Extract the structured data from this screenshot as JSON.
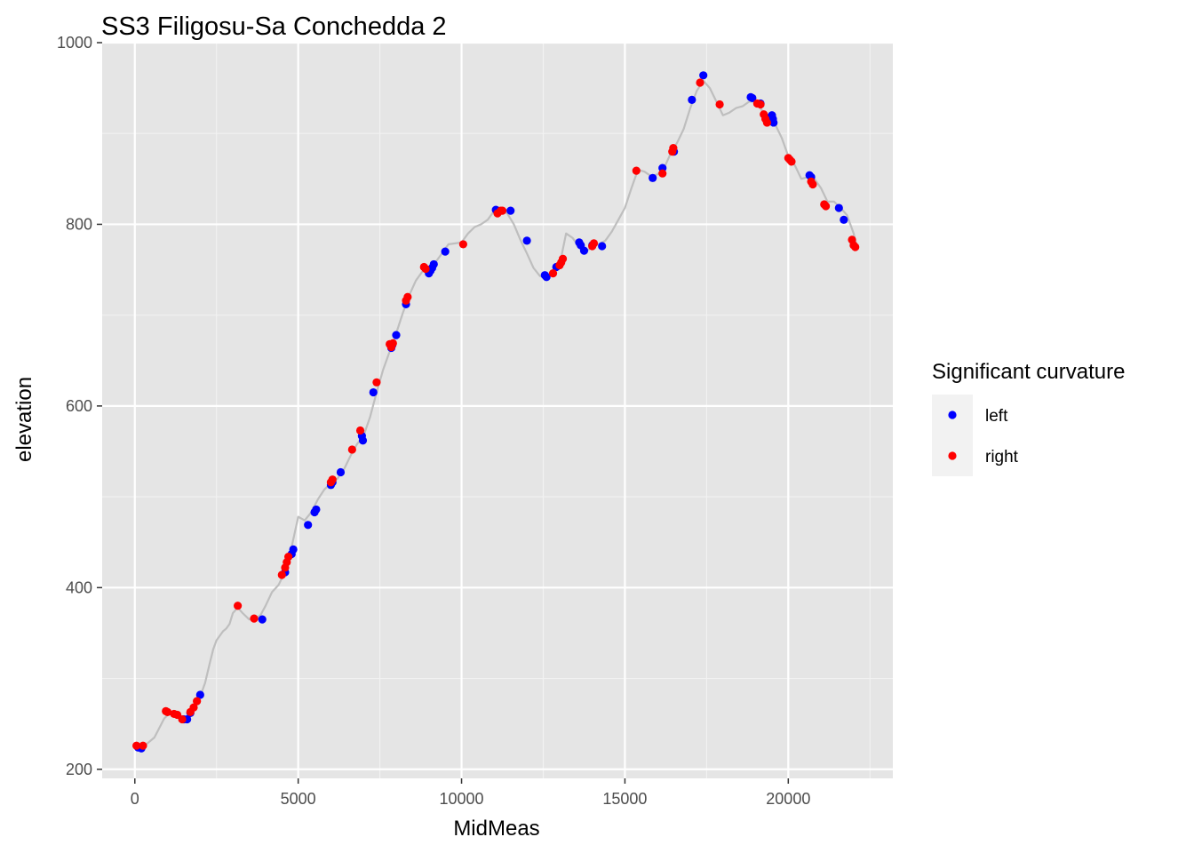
{
  "chart_data": {
    "type": "scatter",
    "title": "SS3 Filigosu-Sa Conchedda 2",
    "xlabel": "MidMeas",
    "ylabel": "elevation",
    "xlim": [
      -1000,
      23200
    ],
    "ylim": [
      190,
      1000
    ],
    "x_ticks": [
      0,
      5000,
      10000,
      15000,
      20000
    ],
    "x_minor_ticks": [
      2500,
      7500,
      12500,
      17500,
      22500
    ],
    "y_ticks": [
      200,
      400,
      600,
      800,
      1000
    ],
    "y_minor_ticks": [
      300,
      500,
      700,
      900
    ],
    "grid": true,
    "legend": {
      "title": "Significant curvature",
      "position": "right"
    },
    "line": {
      "color": "#bebebe",
      "x": [
        0,
        300,
        600,
        900,
        1100,
        1300,
        1500,
        1700,
        1850,
        2000,
        2150,
        2300,
        2400,
        2500,
        2600,
        2700,
        2800,
        2900,
        3000,
        3150,
        3300,
        3500,
        3700,
        3850,
        4000,
        4200,
        4400,
        4600,
        4800,
        5000,
        5200,
        5400,
        5600,
        5800,
        6000,
        6200,
        6400,
        6600,
        6800,
        7000,
        7200,
        7400,
        7600,
        7800,
        8000,
        8200,
        8400,
        8600,
        8800,
        9000,
        9200,
        9400,
        9600,
        9800,
        10000,
        10200,
        10400,
        10600,
        10800,
        11000,
        11200,
        11400,
        11600,
        11800,
        12000,
        12200,
        12400,
        12600,
        12800,
        13000,
        13200,
        13400,
        13600,
        13800,
        14000,
        14200,
        14400,
        14600,
        14800,
        15000,
        15200,
        15400,
        15600,
        15800,
        16000,
        16200,
        16400,
        16600,
        16800,
        17000,
        17200,
        17400,
        17600,
        17800,
        18000,
        18200,
        18400,
        18600,
        18800,
        19000,
        19200,
        19400,
        19600,
        19800,
        20000,
        20200,
        20400,
        20600,
        20800,
        21000,
        21200,
        21400,
        21600,
        21800,
        22000,
        22100
      ],
      "y": [
        225,
        226,
        235,
        256,
        263,
        261,
        255,
        258,
        268,
        280,
        295,
        318,
        332,
        342,
        347,
        352,
        355,
        360,
        372,
        378,
        372,
        365,
        366,
        370,
        380,
        395,
        403,
        418,
        445,
        478,
        474,
        483,
        497,
        508,
        515,
        520,
        530,
        545,
        558,
        567,
        588,
        615,
        640,
        660,
        680,
        702,
        722,
        738,
        748,
        752,
        758,
        768,
        778,
        779,
        780,
        790,
        797,
        800,
        805,
        815,
        815,
        812,
        800,
        783,
        768,
        752,
        743,
        742,
        746,
        755,
        790,
        785,
        775,
        770,
        775,
        778,
        782,
        792,
        805,
        818,
        840,
        860,
        858,
        853,
        855,
        862,
        878,
        890,
        905,
        928,
        947,
        958,
        950,
        935,
        920,
        923,
        928,
        930,
        935,
        935,
        925,
        918,
        910,
        895,
        875,
        865,
        850,
        852,
        850,
        840,
        825,
        825,
        818,
        810,
        790,
        775
      ]
    },
    "series": [
      {
        "name": "left",
        "color": "#0000ff",
        "x": [
          100,
          200,
          1500,
          1600,
          1700,
          2000,
          3900,
          4600,
          4800,
          4850,
          5300,
          5500,
          5550,
          6000,
          6050,
          6300,
          6950,
          6980,
          7300,
          7850,
          7880,
          8000,
          8300,
          9000,
          9050,
          9100,
          9150,
          9500,
          11050,
          11100,
          11500,
          12000,
          12550,
          12600,
          12900,
          13600,
          13650,
          13750,
          14000,
          14300,
          15850,
          16150,
          16500,
          17050,
          17400,
          18850,
          18900,
          19150,
          19350,
          19500,
          19530,
          19550,
          20650,
          20700,
          21550,
          21700
        ],
        "y": [
          224,
          223,
          255,
          255,
          262,
          282,
          365,
          417,
          437,
          442,
          469,
          483,
          486,
          513,
          516,
          527,
          567,
          562,
          615,
          664,
          667,
          678,
          712,
          746,
          749,
          752,
          756,
          770,
          816,
          815,
          815,
          782,
          744,
          742,
          753,
          780,
          777,
          771,
          777,
          776,
          851,
          862,
          880,
          937,
          964,
          940,
          939,
          933,
          917,
          920,
          916,
          912,
          854,
          852,
          818,
          805
        ]
      },
      {
        "name": "right",
        "color": "#ff0000",
        "x": [
          50,
          250,
          950,
          1000,
          1200,
          1300,
          1450,
          1700,
          1800,
          1900,
          3150,
          3650,
          4500,
          4600,
          4650,
          4700,
          6000,
          6050,
          6650,
          6900,
          7400,
          7800,
          7850,
          7900,
          8300,
          8350,
          8850,
          8900,
          10050,
          11100,
          11200,
          11250,
          12800,
          13000,
          13050,
          13100,
          14000,
          14050,
          15350,
          16150,
          16450,
          16480,
          17300,
          17900,
          19050,
          19150,
          19250,
          19300,
          19350,
          20000,
          20050,
          20100,
          20700,
          20750,
          21100,
          21150,
          21950,
          22000,
          22050
        ],
        "y": [
          226,
          226,
          264,
          263,
          261,
          260,
          255,
          263,
          268,
          275,
          380,
          366,
          414,
          422,
          428,
          434,
          516,
          519,
          552,
          573,
          626,
          668,
          665,
          669,
          716,
          720,
          753,
          751,
          778,
          812,
          815,
          815,
          746,
          755,
          758,
          762,
          776,
          779,
          859,
          856,
          880,
          884,
          956,
          932,
          933,
          932,
          921,
          916,
          912,
          873,
          871,
          869,
          847,
          844,
          822,
          820,
          783,
          777,
          775
        ]
      }
    ]
  }
}
